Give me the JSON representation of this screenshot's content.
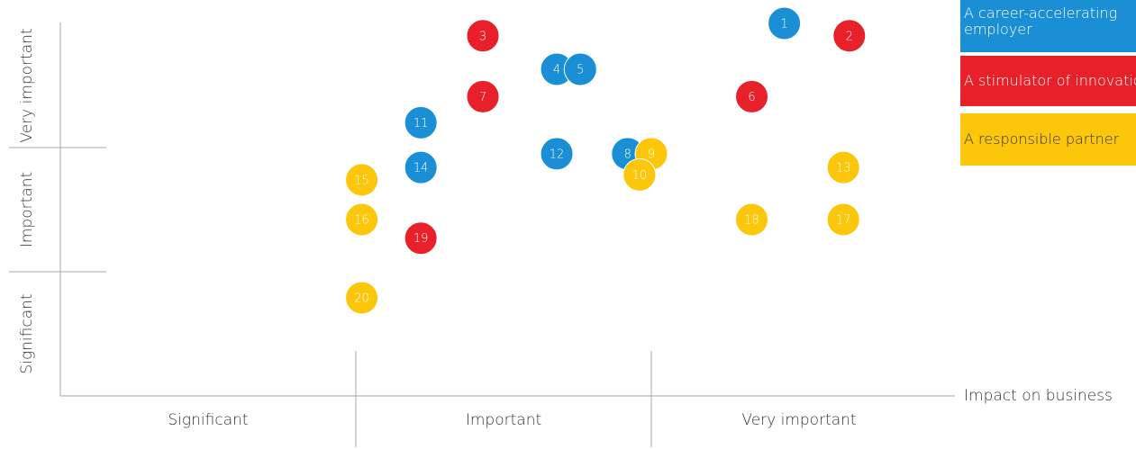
{
  "chart_data": {
    "type": "scatter",
    "x_label": "Impact on business",
    "x_categories": [
      "Significant",
      "Important",
      "Very important"
    ],
    "y_categories": [
      "Significant",
      "Important",
      "Very important"
    ],
    "xlim": [
      0,
      3
    ],
    "ylim": [
      0,
      3
    ],
    "series": [
      {
        "name": "A career-accelerating employer",
        "color": "#1a8fd6",
        "labels": [
          "1",
          "4",
          "5",
          "8",
          "11",
          "12",
          "14"
        ],
        "x": [
          2.45,
          1.68,
          1.76,
          1.92,
          1.22,
          1.68,
          1.22
        ],
        "y": [
          3.0,
          2.63,
          2.63,
          1.95,
          2.2,
          1.95,
          1.84
        ]
      },
      {
        "name": "A stimulator of innovation",
        "color": "#e8202a",
        "labels": [
          "2",
          "3",
          "6",
          "7",
          "19"
        ],
        "x": [
          2.67,
          1.43,
          2.34,
          1.43,
          1.22
        ],
        "y": [
          2.9,
          2.9,
          2.41,
          2.41,
          1.27
        ]
      },
      {
        "name": "A responsible partner",
        "color": "#fcc60a",
        "labels": [
          "9",
          "10",
          "13",
          "15",
          "16",
          "17",
          "18",
          "20"
        ],
        "x": [
          2.0,
          1.96,
          2.65,
          1.02,
          1.02,
          2.65,
          2.34,
          1.02
        ],
        "y": [
          1.95,
          1.78,
          1.84,
          1.74,
          1.42,
          1.42,
          1.42,
          0.79
        ]
      }
    ]
  }
}
